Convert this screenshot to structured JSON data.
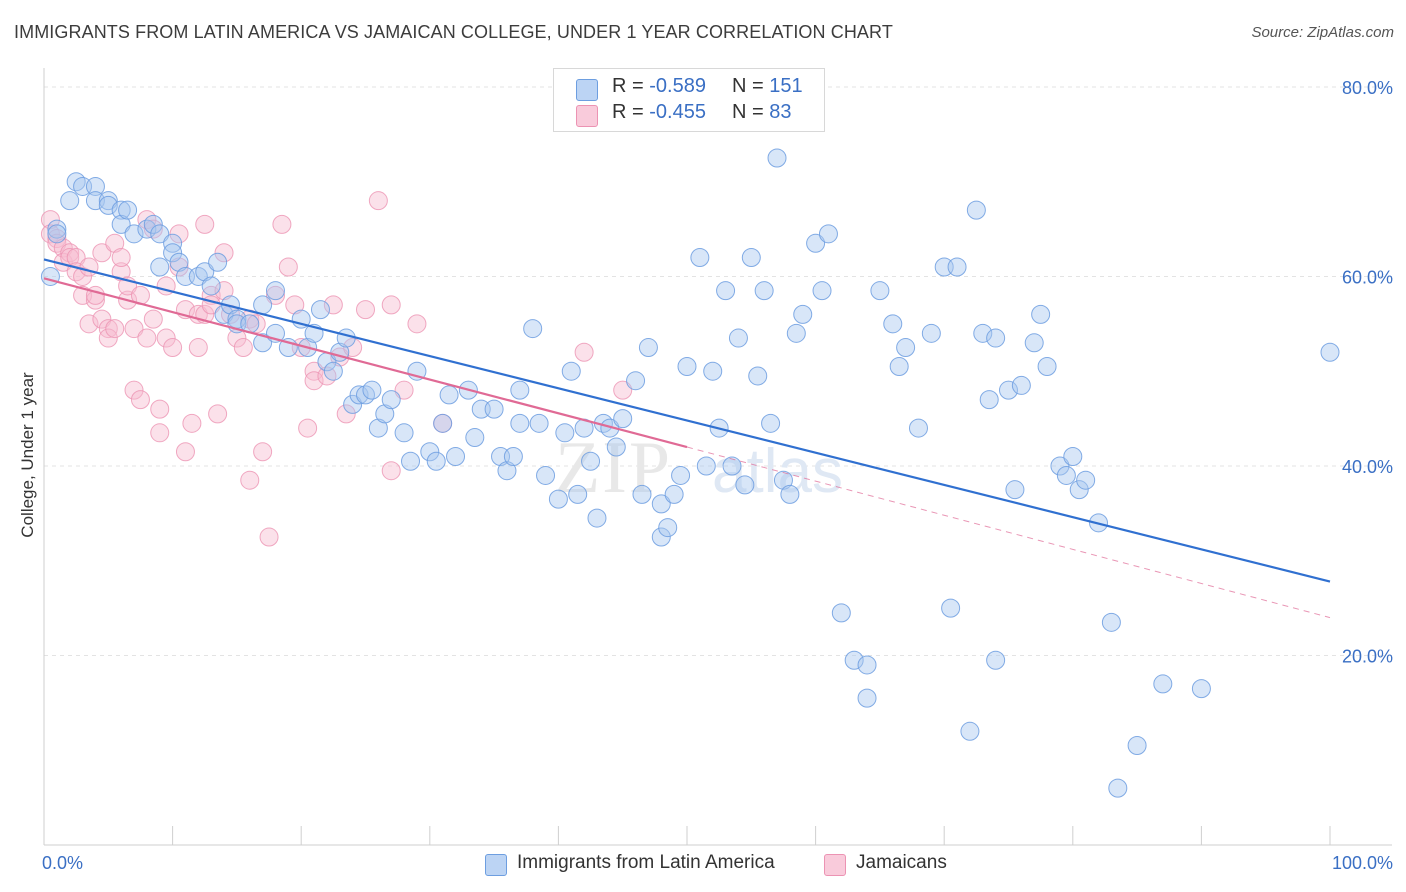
{
  "title": "IMMIGRANTS FROM LATIN AMERICA VS JAMAICAN COLLEGE, UNDER 1 YEAR CORRELATION CHART",
  "source": "Source: ZipAtlas.com",
  "watermark": {
    "zip": "ZIP",
    "atlas": "atlas"
  },
  "colors": {
    "blue_fill": "#a9c8f0",
    "blue_stroke": "#6d9ee0",
    "blue_line": "#3070d0",
    "pink_fill": "#f7bdd0",
    "pink_stroke": "#ec93b3",
    "pink_line": "#e06a95",
    "grid": "#e3e3e3",
    "tick_label": "#3a6fc4"
  },
  "legend_top": {
    "rows": [
      {
        "r_label": "R =",
        "r_value": "-0.589",
        "n_label": "N =",
        "n_value": "151"
      },
      {
        "r_label": "R =",
        "r_value": "-0.455",
        "n_label": "N =",
        "n_value": "83"
      }
    ]
  },
  "legend_bottom": {
    "items": [
      "Immigrants from Latin America",
      "Jamaicans"
    ]
  },
  "chart_data": {
    "type": "scatter",
    "title": "IMMIGRANTS FROM LATIN AMERICA VS JAMAICAN COLLEGE, UNDER 1 YEAR CORRELATION CHART",
    "xlabel": "",
    "ylabel": "College, Under 1 year",
    "xlim": [
      0,
      100
    ],
    "ylim": [
      0,
      82
    ],
    "x_tick_labels": [
      "0.0%",
      "100.0%"
    ],
    "y_ticks": [
      20,
      40,
      60,
      80
    ],
    "y_tick_labels": [
      "20.0%",
      "40.0%",
      "60.0%",
      "80.0%"
    ],
    "grid": true,
    "series": [
      {
        "name": "Immigrants from Latin America",
        "R": -0.589,
        "N": 151,
        "trend": {
          "x": [
            0,
            100
          ],
          "y": [
            61.8,
            27.8
          ]
        },
        "points": [
          [
            0.5,
            60
          ],
          [
            1,
            65
          ],
          [
            1,
            64.5
          ],
          [
            2,
            68
          ],
          [
            2.5,
            70
          ],
          [
            3,
            69.5
          ],
          [
            4,
            69.5
          ],
          [
            4,
            68
          ],
          [
            5,
            68
          ],
          [
            5,
            67.5
          ],
          [
            6,
            67
          ],
          [
            6,
            65.5
          ],
          [
            6.5,
            67
          ],
          [
            7,
            64.5
          ],
          [
            8,
            65
          ],
          [
            8.5,
            65.5
          ],
          [
            9,
            64.5
          ],
          [
            9,
            61
          ],
          [
            10,
            63.5
          ],
          [
            10,
            62.5
          ],
          [
            10.5,
            61.5
          ],
          [
            11,
            60
          ],
          [
            12,
            60
          ],
          [
            12.5,
            60.5
          ],
          [
            13,
            59
          ],
          [
            13.5,
            61.5
          ],
          [
            14,
            56
          ],
          [
            14.5,
            57
          ],
          [
            15,
            55.5
          ],
          [
            15,
            55
          ],
          [
            16,
            55
          ],
          [
            17,
            53
          ],
          [
            17,
            57
          ],
          [
            18,
            54
          ],
          [
            18,
            58.5
          ],
          [
            19,
            52.5
          ],
          [
            20,
            55.5
          ],
          [
            20.5,
            52.5
          ],
          [
            21,
            54
          ],
          [
            21.5,
            56.5
          ],
          [
            22,
            51
          ],
          [
            22.5,
            50
          ],
          [
            23,
            52
          ],
          [
            23.5,
            53.5
          ],
          [
            24,
            46.5
          ],
          [
            24.5,
            47.5
          ],
          [
            25,
            47.5
          ],
          [
            25.5,
            48
          ],
          [
            26,
            44
          ],
          [
            26.5,
            45.5
          ],
          [
            27,
            47
          ],
          [
            28,
            43.5
          ],
          [
            28.5,
            40.5
          ],
          [
            29,
            50
          ],
          [
            30,
            41.5
          ],
          [
            30.5,
            40.5
          ],
          [
            31,
            44.5
          ],
          [
            31.5,
            47.5
          ],
          [
            32,
            41
          ],
          [
            33,
            48
          ],
          [
            33.5,
            43
          ],
          [
            34,
            46
          ],
          [
            35,
            46
          ],
          [
            35.5,
            41
          ],
          [
            36,
            39.5
          ],
          [
            36.5,
            41
          ],
          [
            37,
            48
          ],
          [
            37,
            44.5
          ],
          [
            38,
            54.5
          ],
          [
            38.5,
            44.5
          ],
          [
            39,
            39
          ],
          [
            40,
            36.5
          ],
          [
            40.5,
            43.5
          ],
          [
            41,
            50
          ],
          [
            41.5,
            37
          ],
          [
            42,
            44
          ],
          [
            42.5,
            40.5
          ],
          [
            43,
            34.5
          ],
          [
            43.5,
            44.5
          ],
          [
            44,
            44
          ],
          [
            44.5,
            42
          ],
          [
            45,
            45
          ],
          [
            46,
            49
          ],
          [
            46.5,
            37
          ],
          [
            47,
            52.5
          ],
          [
            48,
            32.5
          ],
          [
            48,
            36
          ],
          [
            48.5,
            33.5
          ],
          [
            49,
            37
          ],
          [
            49.5,
            39
          ],
          [
            50,
            50.5
          ],
          [
            51,
            62
          ],
          [
            51.5,
            40
          ],
          [
            52,
            50
          ],
          [
            52.5,
            44
          ],
          [
            53,
            58.5
          ],
          [
            53.5,
            40
          ],
          [
            54,
            53.5
          ],
          [
            54.5,
            38
          ],
          [
            55,
            62
          ],
          [
            55.5,
            49.5
          ],
          [
            56,
            58.5
          ],
          [
            56.5,
            44.5
          ],
          [
            57,
            72.5
          ],
          [
            57.5,
            38.5
          ],
          [
            58,
            37
          ],
          [
            58.5,
            54
          ],
          [
            59,
            56
          ],
          [
            60,
            63.5
          ],
          [
            60.5,
            58.5
          ],
          [
            61,
            64.5
          ],
          [
            62,
            24.5
          ],
          [
            63,
            19.5
          ],
          [
            64,
            15.5
          ],
          [
            64,
            19
          ],
          [
            65,
            58.5
          ],
          [
            66,
            55
          ],
          [
            66.5,
            50.5
          ],
          [
            67,
            52.5
          ],
          [
            68,
            44
          ],
          [
            69,
            54
          ],
          [
            70,
            61
          ],
          [
            70.5,
            25
          ],
          [
            71,
            61
          ],
          [
            72,
            12
          ],
          [
            72.5,
            67
          ],
          [
            73,
            54
          ],
          [
            73.5,
            47
          ],
          [
            74,
            19.5
          ],
          [
            74,
            53.5
          ],
          [
            75,
            48
          ],
          [
            75.5,
            37.5
          ],
          [
            76,
            48.5
          ],
          [
            77,
            53
          ],
          [
            77.5,
            56
          ],
          [
            78,
            50.5
          ],
          [
            79,
            40
          ],
          [
            79.5,
            39
          ],
          [
            80,
            41
          ],
          [
            80.5,
            37.5
          ],
          [
            81,
            38.5
          ],
          [
            82,
            34
          ],
          [
            83,
            23.5
          ],
          [
            83.5,
            6
          ],
          [
            85,
            10.5
          ],
          [
            87,
            17
          ],
          [
            90,
            16.5
          ],
          [
            100,
            52
          ]
        ]
      },
      {
        "name": "Jamaicans",
        "R": -0.455,
        "N": 83,
        "trend": {
          "x": [
            0,
            50
          ],
          "y": [
            59.8,
            42
          ]
        },
        "trend_extended": {
          "x": [
            50,
            100
          ],
          "y": [
            42,
            24
          ]
        },
        "points": [
          [
            0.5,
            66
          ],
          [
            0.5,
            64.5
          ],
          [
            1,
            64
          ],
          [
            1,
            63.5
          ],
          [
            1.5,
            63
          ],
          [
            1.5,
            61.5
          ],
          [
            2,
            62.5
          ],
          [
            2,
            62
          ],
          [
            2.5,
            62
          ],
          [
            2.5,
            60.5
          ],
          [
            3,
            60
          ],
          [
            3,
            58
          ],
          [
            3.5,
            61
          ],
          [
            3.5,
            55
          ],
          [
            4,
            57.5
          ],
          [
            4,
            58
          ],
          [
            4.5,
            62.5
          ],
          [
            4.5,
            55.5
          ],
          [
            5,
            54.5
          ],
          [
            5,
            53.5
          ],
          [
            5.5,
            63.5
          ],
          [
            5.5,
            54.5
          ],
          [
            6,
            60.5
          ],
          [
            6,
            62
          ],
          [
            6.5,
            57.5
          ],
          [
            6.5,
            59
          ],
          [
            7,
            54.5
          ],
          [
            7,
            48
          ],
          [
            7.5,
            47
          ],
          [
            7.5,
            58
          ],
          [
            8,
            66
          ],
          [
            8,
            53.5
          ],
          [
            8.5,
            65
          ],
          [
            8.5,
            55.5
          ],
          [
            9,
            46
          ],
          [
            9,
            43.5
          ],
          [
            9.5,
            59
          ],
          [
            9.5,
            53.5
          ],
          [
            10,
            52.5
          ],
          [
            10.5,
            61
          ],
          [
            10.5,
            64.5
          ],
          [
            11,
            56.5
          ],
          [
            11,
            41.5
          ],
          [
            11.5,
            44.5
          ],
          [
            12,
            52.5
          ],
          [
            12,
            56
          ],
          [
            12.5,
            65.5
          ],
          [
            12.5,
            56
          ],
          [
            13,
            58
          ],
          [
            13,
            57
          ],
          [
            13.5,
            45.5
          ],
          [
            14,
            62.5
          ],
          [
            14,
            58.5
          ],
          [
            14.5,
            56
          ],
          [
            15,
            53.5
          ],
          [
            15.5,
            52.5
          ],
          [
            16,
            38.5
          ],
          [
            16,
            55.5
          ],
          [
            16.5,
            55
          ],
          [
            17,
            41.5
          ],
          [
            17.5,
            32.5
          ],
          [
            18,
            58
          ],
          [
            18.5,
            65.5
          ],
          [
            19,
            61
          ],
          [
            19.5,
            57
          ],
          [
            20,
            52.5
          ],
          [
            20.5,
            44
          ],
          [
            21,
            50
          ],
          [
            21,
            49
          ],
          [
            22,
            49.5
          ],
          [
            22.5,
            57
          ],
          [
            23,
            51.5
          ],
          [
            23.5,
            45.5
          ],
          [
            24,
            52.5
          ],
          [
            25,
            56.5
          ],
          [
            26,
            68
          ],
          [
            27,
            57
          ],
          [
            27,
            39.5
          ],
          [
            28,
            48
          ],
          [
            29,
            55
          ],
          [
            31,
            44.5
          ],
          [
            42,
            52
          ],
          [
            45,
            48
          ]
        ]
      }
    ]
  }
}
